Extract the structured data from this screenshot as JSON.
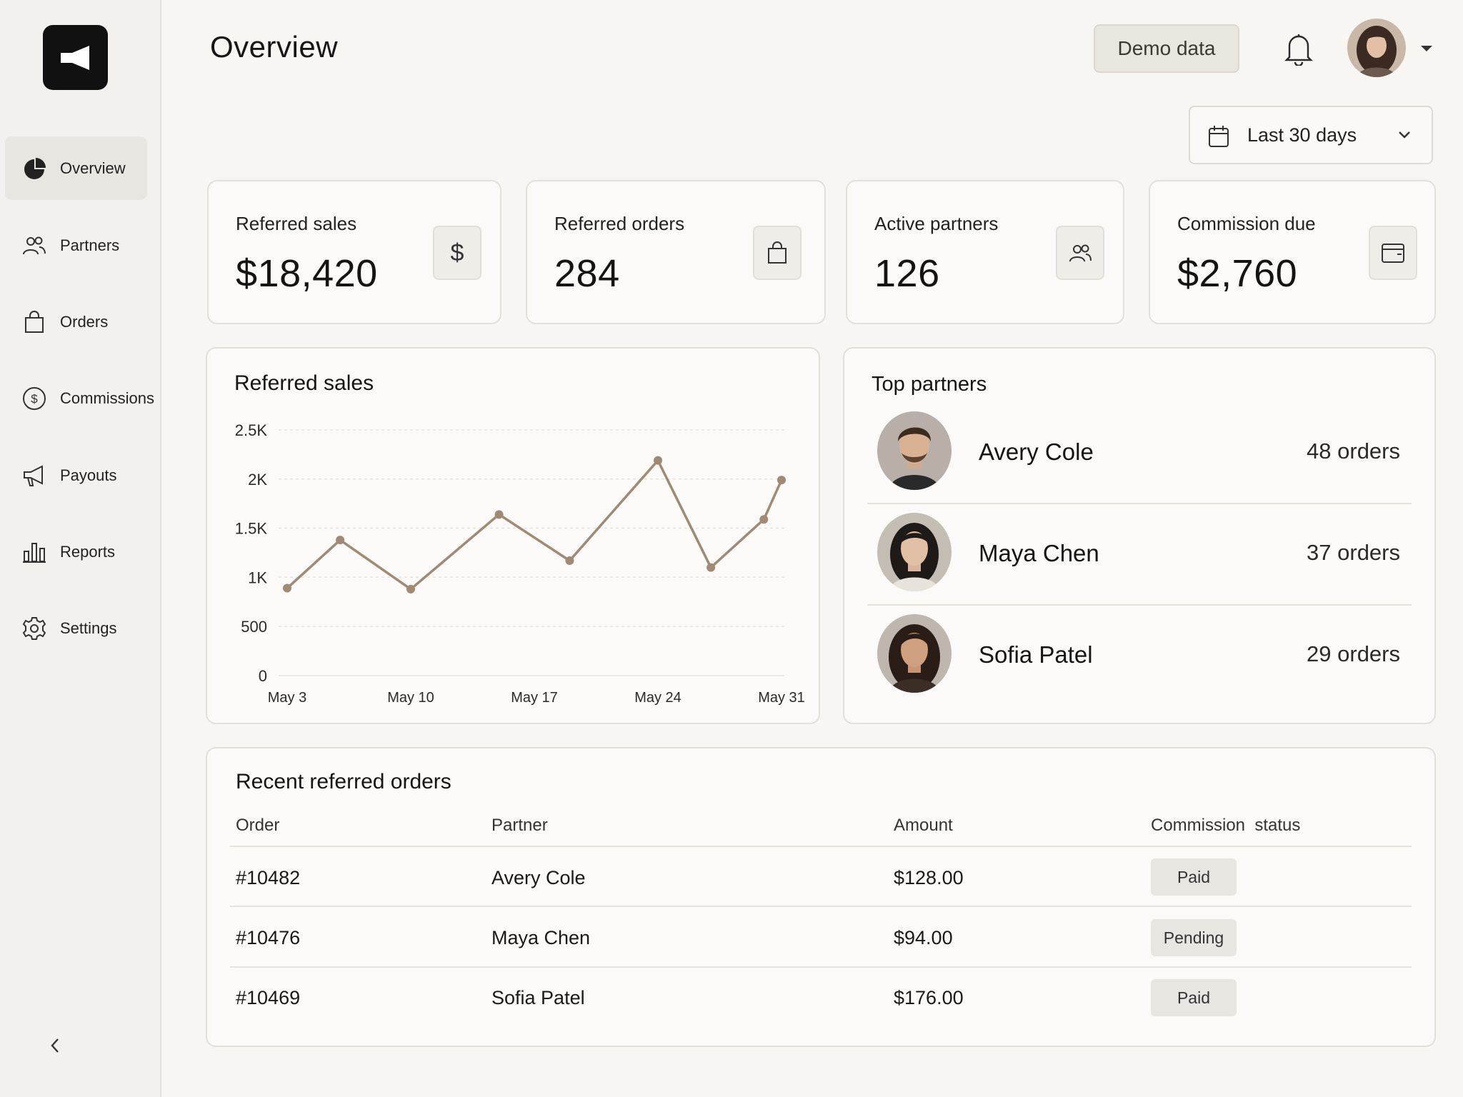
{
  "header": {
    "title": "Overview",
    "demo_button": "Demo data",
    "date_range": "Last 30 days"
  },
  "sidebar": {
    "items": [
      {
        "label": "Overview",
        "icon": "pie-chart-icon",
        "active": true
      },
      {
        "label": "Partners",
        "icon": "users-icon"
      },
      {
        "label": "Orders",
        "icon": "shopping-bag-icon"
      },
      {
        "label": "Commissions",
        "icon": "dollar-circle-icon"
      },
      {
        "label": "Payouts",
        "icon": "megaphone-icon"
      },
      {
        "label": "Reports",
        "icon": "bar-chart-icon"
      },
      {
        "label": "Settings",
        "icon": "gear-icon"
      }
    ]
  },
  "stats": [
    {
      "label": "Referred sales",
      "value": "$18,420",
      "icon": "dollar-icon"
    },
    {
      "label": "Referred orders",
      "value": "284",
      "icon": "shopping-bag-icon"
    },
    {
      "label": "Active partners",
      "value": "126",
      "icon": "users-icon"
    },
    {
      "label": "Commission due",
      "value": "$2,760",
      "icon": "wallet-icon"
    }
  ],
  "sales_chart": {
    "title": "Referred sales"
  },
  "chart_data": {
    "type": "line",
    "title": "Referred sales",
    "x_ticks": [
      "May 3",
      "May 10",
      "May 17",
      "May 24",
      "May 31"
    ],
    "y_ticks": [
      "0",
      "500",
      "1K",
      "1.5K",
      "2K",
      "2.5K"
    ],
    "ylim": [
      0,
      2500
    ],
    "grid": true,
    "color": "#a08a74",
    "points": [
      {
        "x": "May 3",
        "y": 890
      },
      {
        "x": "May 6",
        "y": 1380
      },
      {
        "x": "May 10",
        "y": 880
      },
      {
        "x": "May 15",
        "y": 1640
      },
      {
        "x": "May 19",
        "y": 1170
      },
      {
        "x": "May 24",
        "y": 2190
      },
      {
        "x": "May 27",
        "y": 1100
      },
      {
        "x": "May 30",
        "y": 1590
      },
      {
        "x": "May 31",
        "y": 1990
      }
    ]
  },
  "top_partners": {
    "title": "Top partners",
    "items": [
      {
        "name": "Avery Cole",
        "orders": "48  orders"
      },
      {
        "name": "Maya Chen",
        "orders": "37  orders"
      },
      {
        "name": "Sofia Patel",
        "orders": "29  orders"
      }
    ]
  },
  "orders_table": {
    "title": "Recent referred orders",
    "columns": [
      "Order",
      "Partner",
      "Amount",
      "Commission  status"
    ],
    "rows": [
      {
        "order": "#10482",
        "partner": "Avery Cole",
        "amount": "$128.00",
        "status": "Paid"
      },
      {
        "order": "#10476",
        "partner": "Maya Chen",
        "amount": "$94.00",
        "status": "Pending"
      },
      {
        "order": "#10469",
        "partner": "Sofia Patel",
        "amount": "$176.00",
        "status": "Paid"
      }
    ]
  }
}
